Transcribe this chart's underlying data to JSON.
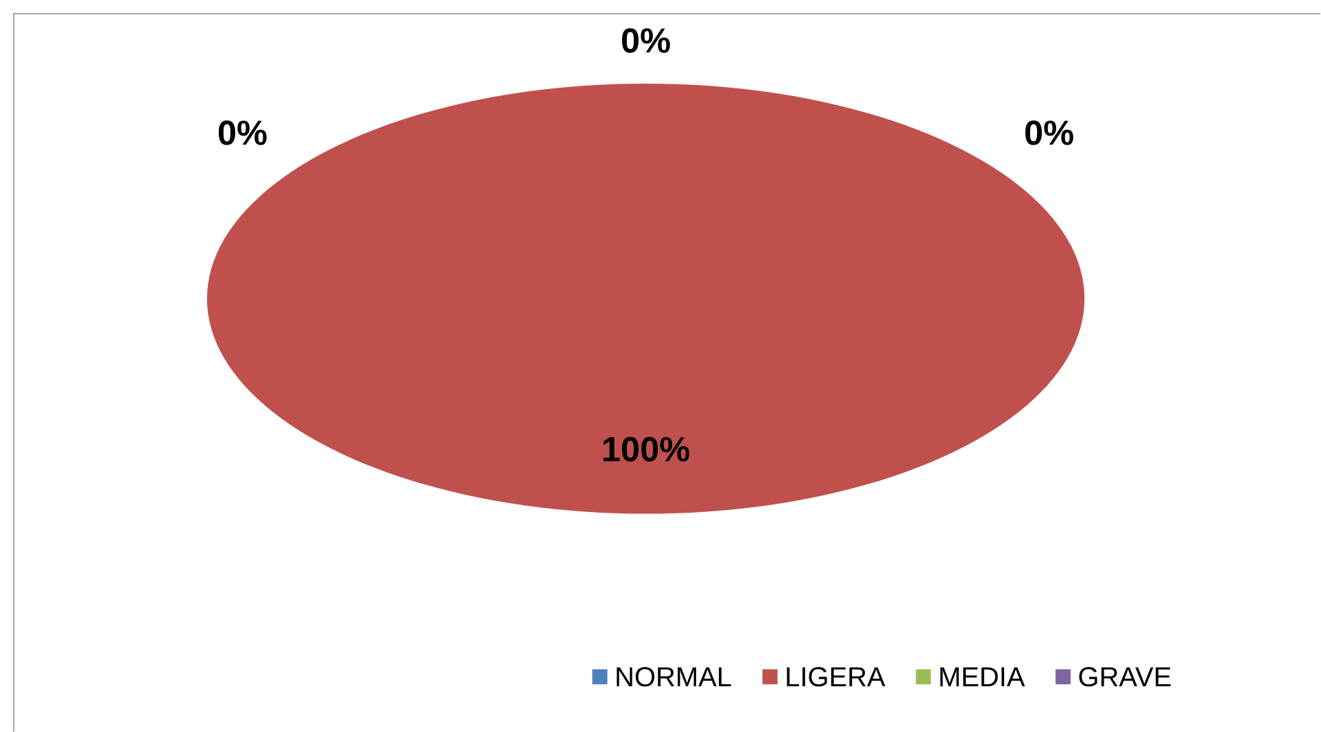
{
  "chart_data": {
    "type": "pie",
    "categories": [
      "NORMAL",
      "LIGERA",
      "MEDIA",
      "GRAVE"
    ],
    "values": [
      0,
      100,
      0,
      0
    ],
    "colors": [
      "#4f81bd",
      "#c0504d",
      "#9bbb59",
      "#8064a2"
    ],
    "value_labels": [
      "0%",
      "100%",
      "0%",
      "0%"
    ],
    "legend": "bottom"
  }
}
